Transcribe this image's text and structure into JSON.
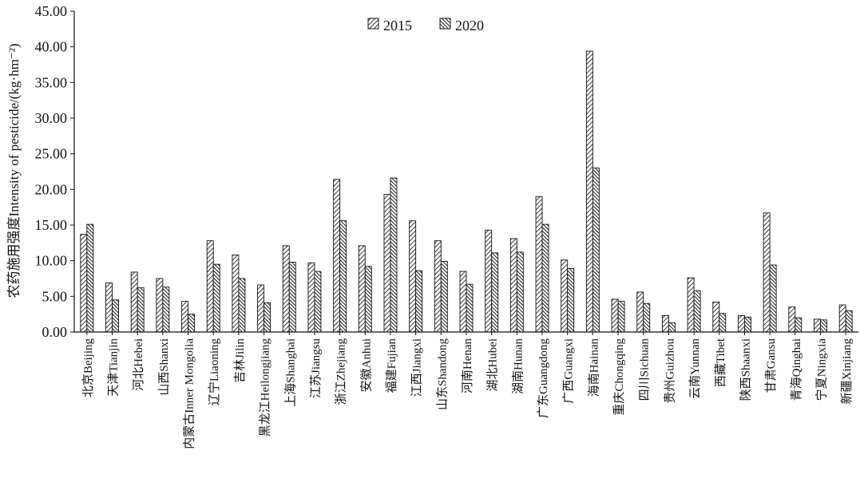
{
  "chart_data": {
    "type": "bar",
    "ylabel": "农药施用强度Intensity of pesticide/(kg·hm⁻²)",
    "ylim": [
      0,
      45
    ],
    "yticks": [
      "0.00",
      "5.00",
      "10.00",
      "15.00",
      "20.00",
      "25.00",
      "30.00",
      "35.00",
      "40.00",
      "45.00"
    ],
    "yticks_values": [
      0,
      5,
      10,
      15,
      20,
      25,
      30,
      35,
      40,
      45
    ],
    "legend_position": "top-center",
    "categories": [
      "北京Beijing",
      "天津Tianjin",
      "河北Hebei",
      "山西Shanxi",
      "内蒙古Inner Mongolia",
      "辽宁Liaoning",
      "吉林Jilin",
      "黑龙江Heilongjiang",
      "上海Shanghai",
      "江苏Jiangsu",
      "浙江Zhejiang",
      "安徽Anhui",
      "福建Fujian",
      "江西Jiangxi",
      "山东Shandong",
      "河南Henan",
      "湖北Hubei",
      "湖南Hunan",
      "广东Guangdong",
      "广西Guangxi",
      "海南Hainan",
      "重庆Chongqing",
      "四川Sichuan",
      "贵州Guizhou",
      "云南Yunnan",
      "西藏Tibet",
      "陕西Shaanxi",
      "甘肃Gansu",
      "青海Qinghai",
      "宁夏Ningxia",
      "新疆Xinjiang"
    ],
    "series": [
      {
        "name": "2015",
        "values": [
          13.7,
          6.9,
          8.4,
          7.5,
          4.3,
          12.8,
          10.8,
          6.6,
          12.1,
          9.7,
          21.4,
          12.1,
          19.3,
          15.6,
          12.8,
          8.5,
          14.3,
          13.1,
          19.0,
          10.1,
          39.4,
          4.6,
          5.6,
          2.3,
          7.6,
          4.2,
          2.3,
          16.7,
          3.5,
          1.8,
          3.8
        ]
      },
      {
        "name": "2020",
        "values": [
          15.1,
          4.5,
          6.2,
          6.3,
          2.5,
          9.5,
          7.5,
          4.1,
          9.8,
          8.5,
          15.6,
          9.2,
          21.6,
          8.6,
          9.9,
          6.7,
          11.1,
          11.2,
          15.1,
          8.9,
          23.0,
          4.3,
          4.0,
          1.3,
          5.8,
          2.6,
          2.1,
          9.4,
          2.0,
          1.7,
          3.0
        ]
      }
    ]
  }
}
